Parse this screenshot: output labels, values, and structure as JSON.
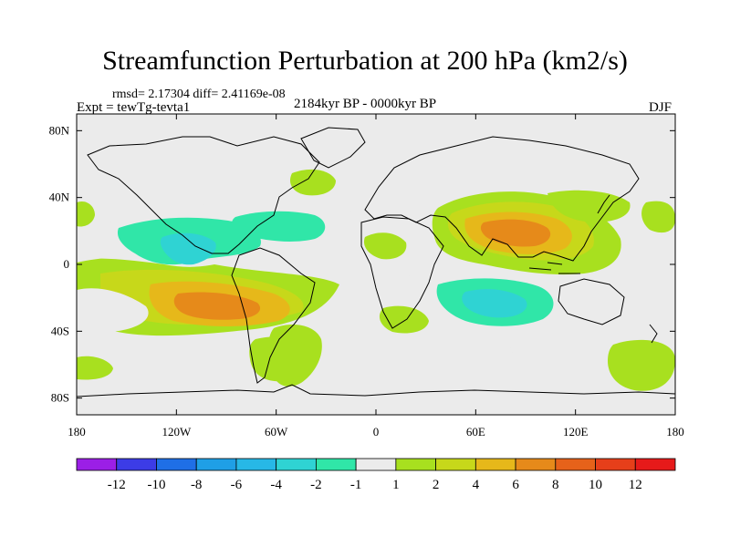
{
  "title": "Streamfunction Perturbation at 200 hPa (km2/s)",
  "stats": "rmsd= 2.17304 diff= 2.41169e-08",
  "experiment": "Expt = tewTg-tevta1",
  "period": "2184kyr BP - 0000kyr BP",
  "season": "DJF",
  "map": {
    "projection": "cylindrical equidistant",
    "lat_range": [
      -90,
      90
    ],
    "lon_range": [
      -180,
      180
    ],
    "lat_ticks": [
      "80N",
      "40N",
      "0",
      "40S",
      "80S"
    ],
    "lat_tick_values": [
      80,
      40,
      0,
      -40,
      -80
    ],
    "lon_ticks": [
      "180",
      "120W",
      "60W",
      "0",
      "60E",
      "120E",
      "180"
    ],
    "lon_tick_values": [
      -180,
      -120,
      -60,
      0,
      60,
      120,
      180
    ],
    "background_color": "#ebebeb",
    "features": [
      {
        "name": "tropical-pacific-positive",
        "level": 1,
        "lon": -175,
        "lat": -10
      },
      {
        "name": "south-pacific-high",
        "level": 6,
        "lon": -95,
        "lat": -20
      },
      {
        "name": "south-atlantic-positive",
        "level": 2,
        "lon": -40,
        "lat": -60
      },
      {
        "name": "north-america-negative",
        "level": -4,
        "lon": -110,
        "lat": 20
      },
      {
        "name": "atlantic-negative",
        "level": -2,
        "lon": -20,
        "lat": 30
      },
      {
        "name": "asian-high",
        "level": 8,
        "lon": 85,
        "lat": 25
      },
      {
        "name": "indian-ocean-negative",
        "level": -4,
        "lon": 65,
        "lat": -20
      },
      {
        "name": "australia-negative",
        "level": -2,
        "lon": 120,
        "lat": -20
      },
      {
        "name": "southern-ocean-positive",
        "level": 2,
        "lon": 160,
        "lat": -55
      }
    ]
  },
  "colorbar": {
    "labels": [
      "-12",
      "-10",
      "-8",
      "-6",
      "-4",
      "-2",
      "-1",
      "1",
      "2",
      "4",
      "6",
      "8",
      "10",
      "12"
    ],
    "colors": [
      "#9b1fe6",
      "#3c3ce6",
      "#1f6fe6",
      "#1f9fe6",
      "#27b8e6",
      "#2fd3d3",
      "#30e6a8",
      "#ebebeb",
      "#a8e01f",
      "#c7d81a",
      "#e6b81a",
      "#e68a1a",
      "#e6621a",
      "#e63f1a",
      "#e61a1a"
    ]
  }
}
